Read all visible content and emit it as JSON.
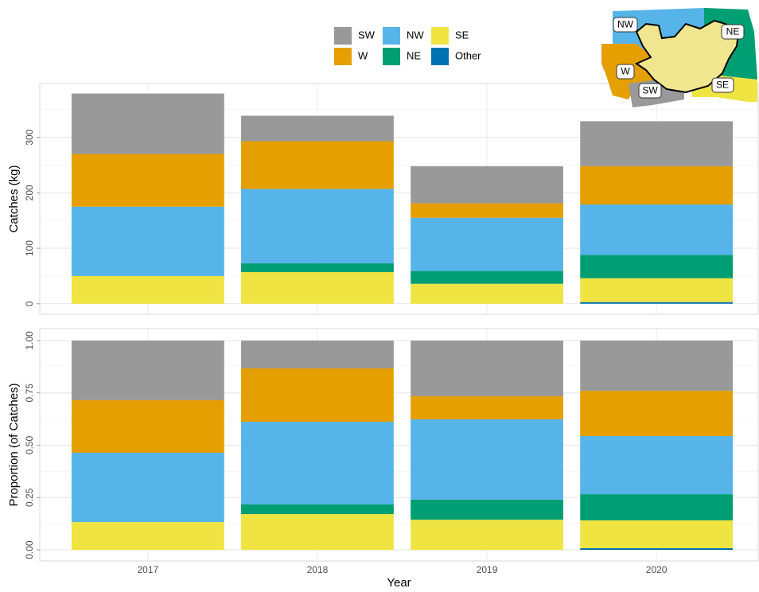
{
  "chart_data": [
    {
      "type": "bar",
      "stacked": true,
      "ylabel": "Catches (kg)",
      "ylim": [
        -19,
        397
      ],
      "yticks": [
        0,
        100,
        200,
        300
      ],
      "minor_grid": [
        50,
        150,
        250,
        350
      ],
      "grid": true,
      "legend": "top",
      "series": [
        {
          "name": "SW",
          "color": "#999999",
          "values": [
            109,
            46,
            67,
            81
          ]
        },
        {
          "name": "W",
          "color": "#E69F00",
          "values": [
            95,
            86,
            26,
            69
          ]
        },
        {
          "name": "NW",
          "color": "#56B4E9",
          "values": [
            125,
            134,
            96,
            91
          ]
        },
        {
          "name": "NE",
          "color": "#009E73",
          "values": [
            0,
            16,
            23,
            42
          ]
        },
        {
          "name": "SE",
          "color": "#F0E442",
          "values": [
            50,
            57,
            36,
            43
          ]
        },
        {
          "name": "Other",
          "color": "#0072B2",
          "values": [
            0,
            0,
            0,
            3
          ]
        }
      ]
    },
    {
      "type": "bar",
      "stacked": true,
      "ylabel": "Proportion (of Catches)",
      "xlabel": "Year",
      "categories": [
        "2017",
        "2018",
        "2019",
        "2020"
      ],
      "ylim": [
        -0.053,
        1.057
      ],
      "yticks": [
        {
          "value": 0,
          "label": "0.00"
        },
        0.25,
        {
          "value": 0.5,
          "label": "0.50"
        },
        0.75,
        {
          "value": 1,
          "label": "1.00"
        }
      ],
      "minor_grid": [
        0.125,
        0.375,
        0.625,
        0.875
      ],
      "grid": true,
      "series": [
        {
          "color": "#999999",
          "values": [
            0.285,
            0.133,
            0.266,
            0.24
          ]
        },
        {
          "color": "#E69F00",
          "values": [
            0.251,
            0.255,
            0.11,
            0.216
          ]
        },
        {
          "color": "#56B4E9",
          "values": [
            0.331,
            0.395,
            0.384,
            0.278
          ]
        },
        {
          "color": "#009E73",
          "values": [
            0,
            0.046,
            0.096,
            0.125
          ]
        },
        {
          "color": "#F0E442",
          "values": [
            0.133,
            0.171,
            0.144,
            0.133
          ]
        },
        {
          "color": "#0072B2",
          "values": [
            0,
            0,
            0,
            0.008
          ]
        }
      ]
    }
  ],
  "inset": {
    "labels": [
      "NW",
      "NE",
      "W",
      "SW",
      "SE"
    ]
  }
}
